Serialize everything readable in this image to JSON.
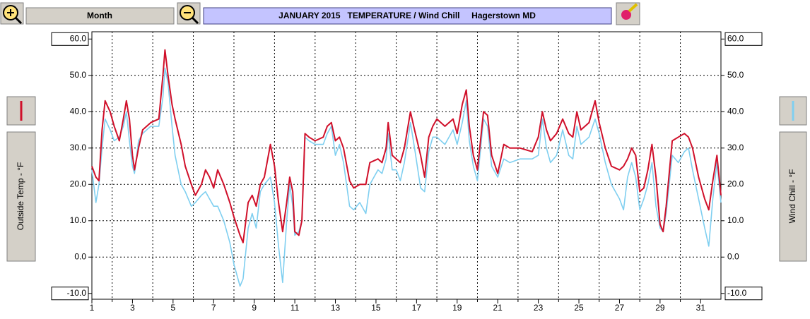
{
  "toolbar": {
    "period_button": "Month"
  },
  "chart_data": {
    "type": "line",
    "title": "JANUARY 2015   TEMPERATURE / Wind Chill     Hagerstown MD",
    "x": [
      1.0,
      1.2,
      1.35,
      1.5,
      1.65,
      1.9,
      2.1,
      2.35,
      2.55,
      2.7,
      2.85,
      3.0,
      3.1,
      3.3,
      3.5,
      3.9,
      4.3,
      4.5,
      4.6,
      4.75,
      4.95,
      5.1,
      5.4,
      5.6,
      5.9,
      6.1,
      6.4,
      6.6,
      6.8,
      7.0,
      7.2,
      7.5,
      7.8,
      8.0,
      8.3,
      8.45,
      8.7,
      8.9,
      9.1,
      9.3,
      9.5,
      9.8,
      10.0,
      10.2,
      10.4,
      10.6,
      10.75,
      10.9,
      11.0,
      11.2,
      11.35,
      11.5,
      11.7,
      12.0,
      12.4,
      12.6,
      12.8,
      13.0,
      13.2,
      13.4,
      13.7,
      13.9,
      14.2,
      14.5,
      14.7,
      15.1,
      15.3,
      15.5,
      15.6,
      15.8,
      16.0,
      16.2,
      16.4,
      16.7,
      16.9,
      17.2,
      17.4,
      17.6,
      17.8,
      18.0,
      18.4,
      18.8,
      19.0,
      19.25,
      19.45,
      19.6,
      19.8,
      20.0,
      20.3,
      20.5,
      20.7,
      21.0,
      21.3,
      21.6,
      22.1,
      22.7,
      23.0,
      23.2,
      23.4,
      23.6,
      23.9,
      24.2,
      24.5,
      24.7,
      24.9,
      25.1,
      25.5,
      25.8,
      26.0,
      26.3,
      26.6,
      27.0,
      27.2,
      27.4,
      27.6,
      27.8,
      28.0,
      28.2,
      28.4,
      28.6,
      28.8,
      29.0,
      29.15,
      29.3,
      29.6,
      29.9,
      30.2,
      30.4,
      30.6,
      30.9,
      31.2,
      31.4,
      31.6,
      31.8,
      32.0
    ],
    "series": [
      {
        "name": "Outside Temp - °F",
        "color": "#d0102a",
        "axis": "y",
        "values": [
          25,
          22,
          21,
          35,
          43,
          40,
          36,
          32,
          38,
          43,
          38,
          28,
          24,
          30,
          35,
          37,
          38,
          50,
          57,
          50,
          42,
          38,
          31,
          25,
          20,
          17,
          20,
          24,
          22,
          19,
          24,
          20,
          15,
          11,
          6,
          4,
          15,
          17,
          14,
          20,
          22,
          31,
          25,
          15,
          7,
          15,
          22,
          18,
          7,
          6,
          10,
          34,
          33,
          32,
          33,
          36,
          37,
          32,
          33,
          30,
          21,
          19,
          20,
          20,
          26,
          27,
          26,
          30,
          37,
          28,
          27,
          26,
          30,
          40,
          35,
          28,
          22,
          33,
          36,
          38,
          36,
          38,
          34,
          42,
          46,
          36,
          28,
          24,
          40,
          39,
          28,
          23,
          31,
          30,
          30,
          29,
          33,
          40,
          35,
          32,
          34,
          38,
          34,
          33,
          40,
          35,
          37,
          43,
          37,
          30,
          25,
          24,
          25,
          27,
          30,
          28,
          18,
          19,
          24,
          31,
          22,
          9,
          7,
          14,
          32,
          33,
          34,
          33,
          30,
          22,
          16,
          13,
          21,
          28,
          17
        ]
      },
      {
        "name": "Wind Chill - °F",
        "color": "#7fcff0",
        "axis": "y2",
        "values": [
          24,
          15,
          20,
          30,
          38,
          35,
          32,
          33,
          36,
          40,
          32,
          25,
          23,
          32,
          34,
          36,
          36,
          44,
          52,
          48,
          36,
          28,
          20,
          18,
          14,
          15,
          17,
          18,
          16,
          14,
          14,
          10,
          4,
          -2,
          -8,
          -6,
          8,
          12,
          8,
          18,
          20,
          22,
          15,
          3,
          -7,
          10,
          20,
          14,
          6,
          7,
          10,
          33,
          32,
          31,
          31,
          34,
          36,
          28,
          31,
          26,
          14,
          13,
          15,
          12,
          20,
          24,
          23,
          27,
          34,
          24,
          24,
          21,
          26,
          37,
          30,
          19,
          18,
          29,
          33,
          33,
          31,
          35,
          31,
          37,
          43,
          32,
          25,
          21,
          38,
          36,
          25,
          22,
          27,
          26,
          27,
          27,
          28,
          38,
          30,
          26,
          28,
          35,
          28,
          27,
          36,
          31,
          33,
          38,
          34,
          26,
          20,
          16,
          13,
          22,
          26,
          22,
          13,
          16,
          20,
          26,
          14,
          8,
          7,
          12,
          28,
          26,
          29,
          30,
          24,
          16,
          8,
          3,
          16,
          26,
          15
        ]
      }
    ],
    "xlim": [
      1,
      32
    ],
    "xticks": [
      1,
      3,
      5,
      7,
      9,
      11,
      13,
      15,
      17,
      19,
      21,
      23,
      25,
      27,
      29,
      31
    ],
    "ylim": [
      -11.6,
      62
    ],
    "yticks": [
      {
        "value": 60,
        "label": "60.0"
      },
      {
        "value": 50,
        "label": "50.0"
      },
      {
        "value": 40,
        "label": "40.0"
      },
      {
        "value": 30,
        "label": "30.0"
      },
      {
        "value": 20,
        "label": "20.0"
      },
      {
        "value": 10,
        "label": "10.0"
      },
      {
        "value": 0,
        "label": "0.0"
      },
      {
        "value": -10,
        "label": "-10.0"
      }
    ],
    "y2lim": [
      -11.6,
      62
    ],
    "y2ticks": [
      {
        "value": 60,
        "label": "60.0"
      },
      {
        "value": 50,
        "label": "50.0"
      },
      {
        "value": 40,
        "label": "40.0"
      },
      {
        "value": 30,
        "label": "30.0"
      },
      {
        "value": 20,
        "label": "20.0"
      },
      {
        "value": 10,
        "label": "10.0"
      },
      {
        "value": 0,
        "label": "0.0"
      },
      {
        "value": -10,
        "label": "-10.0"
      }
    ],
    "grid": true
  }
}
